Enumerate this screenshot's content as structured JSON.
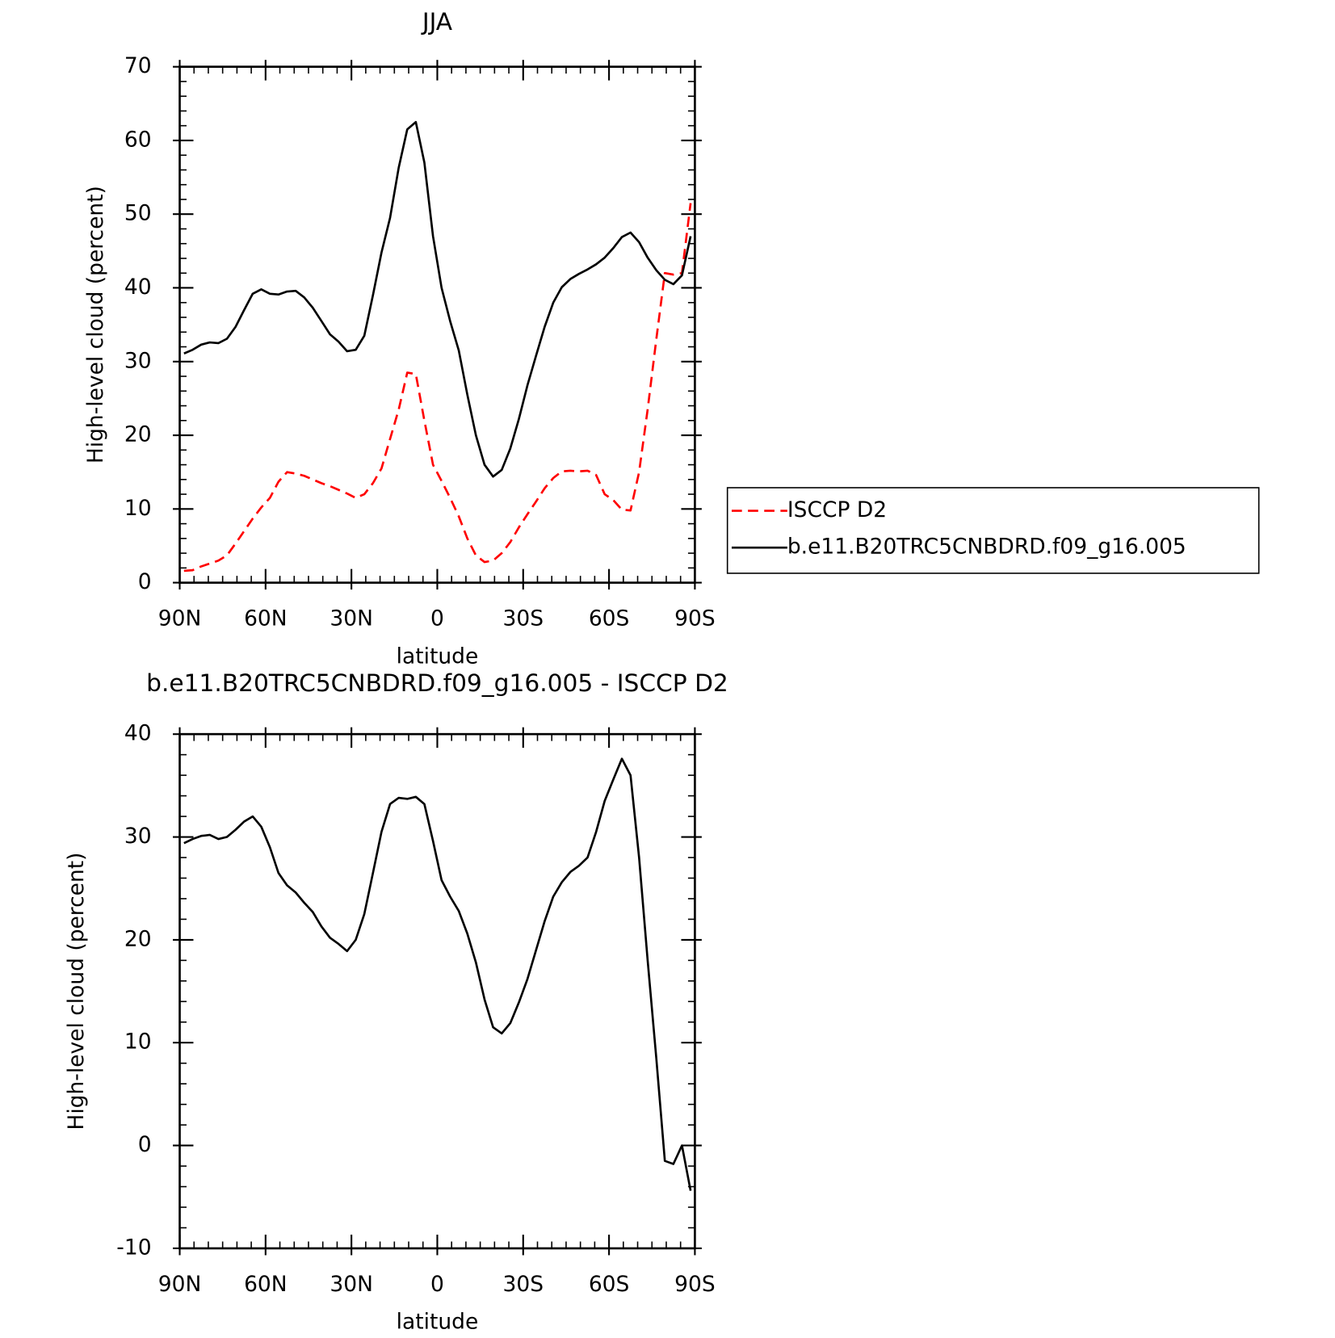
{
  "chart_data": [
    {
      "type": "line",
      "title": "JJA",
      "x_label": "latitude",
      "y_label": "High-level cloud (percent)",
      "x": [
        88.5,
        85.5,
        82.5,
        79.5,
        76.5,
        73.5,
        70.5,
        67.5,
        64.5,
        61.5,
        58.5,
        55.5,
        52.5,
        49.5,
        46.5,
        43.5,
        40.5,
        37.5,
        34.5,
        31.5,
        28.5,
        25.5,
        22.5,
        19.5,
        16.5,
        13.5,
        10.5,
        7.5,
        4.5,
        1.5,
        -1.5,
        -4.5,
        -7.5,
        -10.5,
        -13.5,
        -16.5,
        -19.5,
        -22.5,
        -25.5,
        -28.5,
        -31.5,
        -34.5,
        -37.5,
        -40.5,
        -43.5,
        -46.5,
        -49.5,
        -52.5,
        -55.5,
        -58.5,
        -61.5,
        -64.5,
        -67.5,
        -70.5,
        -73.5,
        -76.5,
        -79.5,
        -82.5,
        -85.5,
        -88.5
      ],
      "series": [
        {
          "name": "ISCCP D2",
          "color": "#ff0000",
          "line_style": "dashed",
          "values": [
            1.6,
            1.7,
            2.2,
            2.6,
            3.0,
            3.7,
            5.3,
            7.0,
            8.7,
            10.2,
            11.5,
            13.7,
            15.0,
            14.8,
            14.5,
            14.0,
            13.5,
            13.1,
            12.6,
            12.1,
            11.5,
            12.0,
            13.5,
            15.5,
            19.5,
            23.5,
            28.5,
            28.3,
            22,
            16.0,
            13.8,
            11.5,
            9.0,
            6.0,
            3.7,
            2.8,
            3.0,
            4.0,
            5.5,
            7.5,
            9.3,
            11.0,
            12.8,
            14.2,
            15.1,
            15.2,
            15.1,
            15.2,
            14.6,
            12.0,
            11.2,
            9.9,
            9.8,
            15,
            23.5,
            33,
            42,
            41.8,
            42,
            51.5
          ]
        },
        {
          "name": "b.e11.B20TRC5CNBDRD.f09_g16.005",
          "color": "#000000",
          "line_style": "solid",
          "values": [
            31.1,
            31.6,
            32.3,
            32.6,
            32.5,
            33.1,
            34.7,
            37.0,
            39.2,
            39.8,
            39.2,
            39.1,
            39.5,
            39.6,
            38.7,
            37.3,
            35.5,
            33.7,
            32.7,
            31.4,
            31.6,
            33.5,
            39,
            44.8,
            49.5,
            56.3,
            61.5,
            62.5,
            57,
            47,
            40,
            35.5,
            31.5,
            25.5,
            20,
            16,
            14.4,
            15.3,
            18.2,
            22.2,
            26.8,
            30.8,
            34.7,
            38,
            40.1,
            41.2,
            41.9,
            42.5,
            43.2,
            44.1,
            45.4,
            46.9,
            47.5,
            46.2,
            44.1,
            42.4,
            41.1,
            40.5,
            41.7,
            47
          ]
        }
      ],
      "xlim": [
        90,
        -90
      ],
      "xticks": [
        {
          "value": 90,
          "label": "90N"
        },
        {
          "value": 60,
          "label": "60N"
        },
        {
          "value": 30,
          "label": "30N"
        },
        0,
        {
          "value": -30,
          "label": "30S"
        },
        {
          "value": -60,
          "label": "60S"
        },
        {
          "value": -90,
          "label": "90S"
        }
      ],
      "ylim": [
        0,
        70
      ],
      "yticks": [
        0,
        10,
        20,
        30,
        40,
        50,
        60,
        70
      ],
      "legend": "outside-right"
    },
    {
      "type": "line",
      "title": "b.e11.B20TRC5CNBDRD.f09_g16.005 - ISCCP D2",
      "x_label": "latitude",
      "y_label": "High-level cloud (percent)",
      "x": [
        88.5,
        85.5,
        82.5,
        79.5,
        76.5,
        73.5,
        70.5,
        67.5,
        64.5,
        61.5,
        58.5,
        55.5,
        52.5,
        49.5,
        46.5,
        43.5,
        40.5,
        37.5,
        34.5,
        31.5,
        28.5,
        25.5,
        22.5,
        19.5,
        16.5,
        13.5,
        10.5,
        7.5,
        4.5,
        1.5,
        -1.5,
        -4.5,
        -7.5,
        -10.5,
        -13.5,
        -16.5,
        -19.5,
        -22.5,
        -25.5,
        -28.5,
        -31.5,
        -34.5,
        -37.5,
        -40.5,
        -43.5,
        -46.5,
        -49.5,
        -52.5,
        -55.5,
        -58.5,
        -61.5,
        -64.5,
        -67.5,
        -70.5,
        -73.5,
        -76.5,
        -79.5,
        -82.5,
        -85.5,
        -88.5
      ],
      "series": [
        {
          "color": "#000000",
          "line_style": "solid",
          "values": [
            29.4,
            29.8,
            30.1,
            30.2,
            29.8,
            30.0,
            30.7,
            31.5,
            32.0,
            31.0,
            29.0,
            26.5,
            25.3,
            24.6,
            23.6,
            22.7,
            21.3,
            20.2,
            19.6,
            18.9,
            20.0,
            22.5,
            26.5,
            30.5,
            33.2,
            33.8,
            33.7,
            33.9,
            33.2,
            29.6,
            25.8,
            24.2,
            22.8,
            20.6,
            17.8,
            14.2,
            11.5,
            10.9,
            11.9,
            13.9,
            16.2,
            19.0,
            21.8,
            24.2,
            25.6,
            26.6,
            27.2,
            28.0,
            30.5,
            33.5,
            35.6,
            37.6,
            36,
            28,
            18,
            8.5,
            -1.5,
            -1.8,
            0.0,
            -4.4
          ]
        }
      ],
      "xlim": [
        90,
        -90
      ],
      "xticks": [
        {
          "value": 90,
          "label": "90N"
        },
        {
          "value": 60,
          "label": "60N"
        },
        {
          "value": 30,
          "label": "30N"
        },
        0,
        {
          "value": -30,
          "label": "30S"
        },
        {
          "value": -60,
          "label": "60S"
        },
        {
          "value": -90,
          "label": "90S"
        }
      ],
      "ylim": [
        -10,
        40
      ],
      "yticks": [
        -10,
        0,
        10,
        20,
        30,
        40
      ]
    }
  ]
}
